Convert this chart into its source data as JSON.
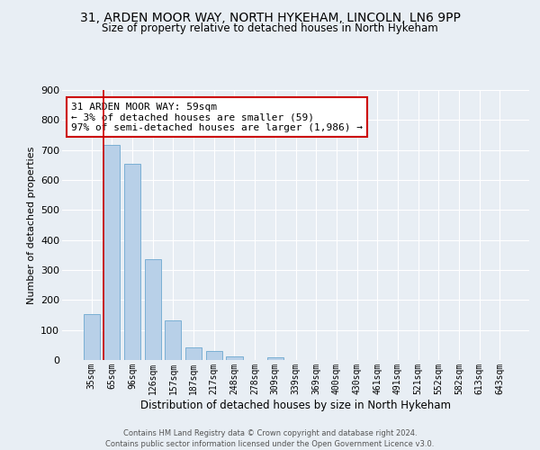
{
  "title": "31, ARDEN MOOR WAY, NORTH HYKEHAM, LINCOLN, LN6 9PP",
  "subtitle": "Size of property relative to detached houses in North Hykeham",
  "xlabel": "Distribution of detached houses by size in North Hykeham",
  "ylabel": "Number of detached properties",
  "footer": "Contains HM Land Registry data © Crown copyright and database right 2024.\nContains public sector information licensed under the Open Government Licence v3.0.",
  "categories": [
    "35sqm",
    "65sqm",
    "96sqm",
    "126sqm",
    "157sqm",
    "187sqm",
    "217sqm",
    "248sqm",
    "278sqm",
    "309sqm",
    "339sqm",
    "369sqm",
    "400sqm",
    "430sqm",
    "461sqm",
    "491sqm",
    "521sqm",
    "552sqm",
    "582sqm",
    "613sqm",
    "643sqm"
  ],
  "values": [
    152,
    717,
    655,
    337,
    131,
    42,
    30,
    13,
    0,
    9,
    0,
    0,
    0,
    0,
    0,
    0,
    0,
    0,
    0,
    0,
    0
  ],
  "bar_color": "#b8d0e8",
  "bar_edge_color": "#7aafd4",
  "vline_color": "#cc0000",
  "annotation_text": "31 ARDEN MOOR WAY: 59sqm\n← 3% of detached houses are smaller (59)\n97% of semi-detached houses are larger (1,986) →",
  "annotation_box_color": "#ffffff",
  "annotation_box_edge": "#cc0000",
  "ylim": [
    0,
    900
  ],
  "yticks": [
    0,
    100,
    200,
    300,
    400,
    500,
    600,
    700,
    800,
    900
  ],
  "bg_color": "#e8eef4",
  "plot_bg_color": "#e8eef4",
  "grid_color": "#ffffff"
}
